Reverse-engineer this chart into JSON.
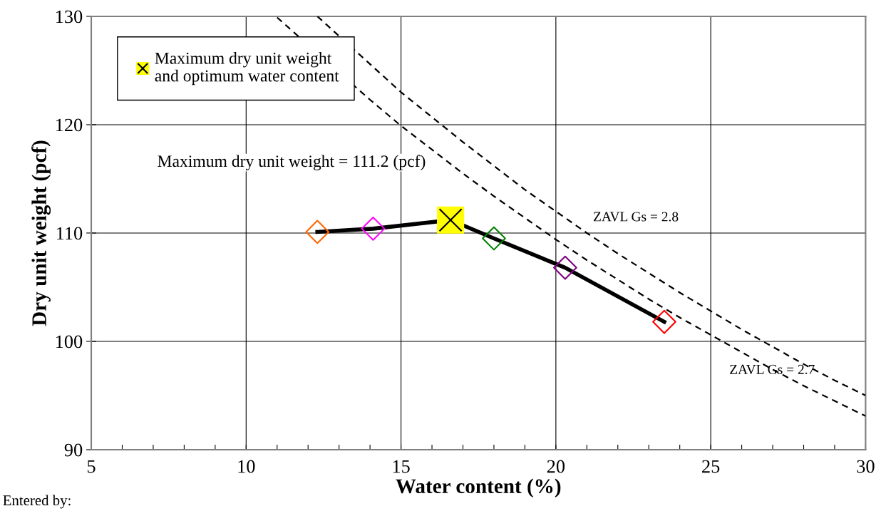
{
  "chart_data": {
    "type": "line",
    "xlabel": "Water content (%)",
    "ylabel": "Dry unit weight (pcf)",
    "xlim": [
      5,
      30
    ],
    "ylim": [
      90,
      130
    ],
    "xticks": [
      5,
      {
        "value": 6,
        "label": null
      },
      {
        "value": 7,
        "label": null
      },
      {
        "value": 8,
        "label": null
      },
      {
        "value": 9,
        "label": null
      },
      10,
      {
        "value": 11,
        "label": null
      },
      {
        "value": 12,
        "label": null
      },
      {
        "value": 13,
        "label": null
      },
      {
        "value": 14,
        "label": null
      },
      15,
      {
        "value": 16,
        "label": null
      },
      {
        "value": 17,
        "label": null
      },
      {
        "value": 18,
        "label": null
      },
      {
        "value": 19,
        "label": null
      },
      20,
      {
        "value": 21,
        "label": null
      },
      {
        "value": 22,
        "label": null
      },
      {
        "value": 23,
        "label": null
      },
      {
        "value": 24,
        "label": null
      },
      25,
      {
        "value": 26,
        "label": null
      },
      {
        "value": 27,
        "label": null
      },
      {
        "value": 28,
        "label": null
      },
      {
        "value": 29,
        "label": null
      },
      30
    ],
    "yticks": [
      90,
      100,
      110,
      120,
      130
    ],
    "grid": true,
    "legend": "top left",
    "series": [
      {
        "color": "#000000",
        "line_style": "solid",
        "marker": "none",
        "x": [
          12.3,
          14.1,
          16.6,
          18.0,
          20.3,
          23.5
        ],
        "values": [
          110.1,
          110.4,
          111.2,
          109.5,
          106.8,
          101.8
        ]
      },
      {
        "type": "scatter",
        "marker": "diamond",
        "x": [
          12.3,
          14.1,
          18.0,
          20.3,
          23.5
        ],
        "values": [
          110.1,
          110.4,
          109.5,
          106.8,
          101.8
        ],
        "colors": [
          "#ff6600",
          "#ff00ff",
          "#008000",
          "#800080",
          "#ff0000"
        ]
      },
      {
        "type": "scatter",
        "name": "Maximum dry unit weight and optimum water content",
        "marker": "square",
        "color": "#ffff00",
        "x": [
          16.6
        ],
        "values": [
          111.2
        ]
      },
      {
        "color": "#000000",
        "line_style": "dashed",
        "marker": "none",
        "x": [
          12.3,
          15,
          16,
          17,
          18,
          19,
          20,
          21,
          22,
          23,
          24,
          25,
          26,
          27,
          28,
          29,
          30
        ],
        "values": [
          130.0,
          123.0,
          120.7,
          118.4,
          116.2,
          114.0,
          112.0,
          110.0,
          108.1,
          106.3,
          104.5,
          102.8,
          101.1,
          99.5,
          97.9,
          96.4,
          95.0
        ]
      },
      {
        "color": "#000000",
        "line_style": "dashed",
        "marker": "none",
        "x": [
          11,
          14,
          15,
          16,
          17,
          18,
          19,
          20,
          21,
          22,
          23,
          24,
          25,
          26,
          27,
          28,
          29,
          30
        ],
        "values": [
          129.9,
          122.3,
          119.9,
          117.7,
          115.5,
          113.4,
          111.4,
          109.4,
          107.5,
          105.7,
          103.9,
          102.2,
          100.6,
          99.0,
          97.4,
          95.9,
          94.5,
          93.1
        ]
      }
    ],
    "annotations": [
      "Maximum dry unit weight = 111.2 (pcf)",
      "ZAVL Gs = 2.8",
      "ZAVL Gs = 2.7",
      "Entered by:"
    ]
  }
}
